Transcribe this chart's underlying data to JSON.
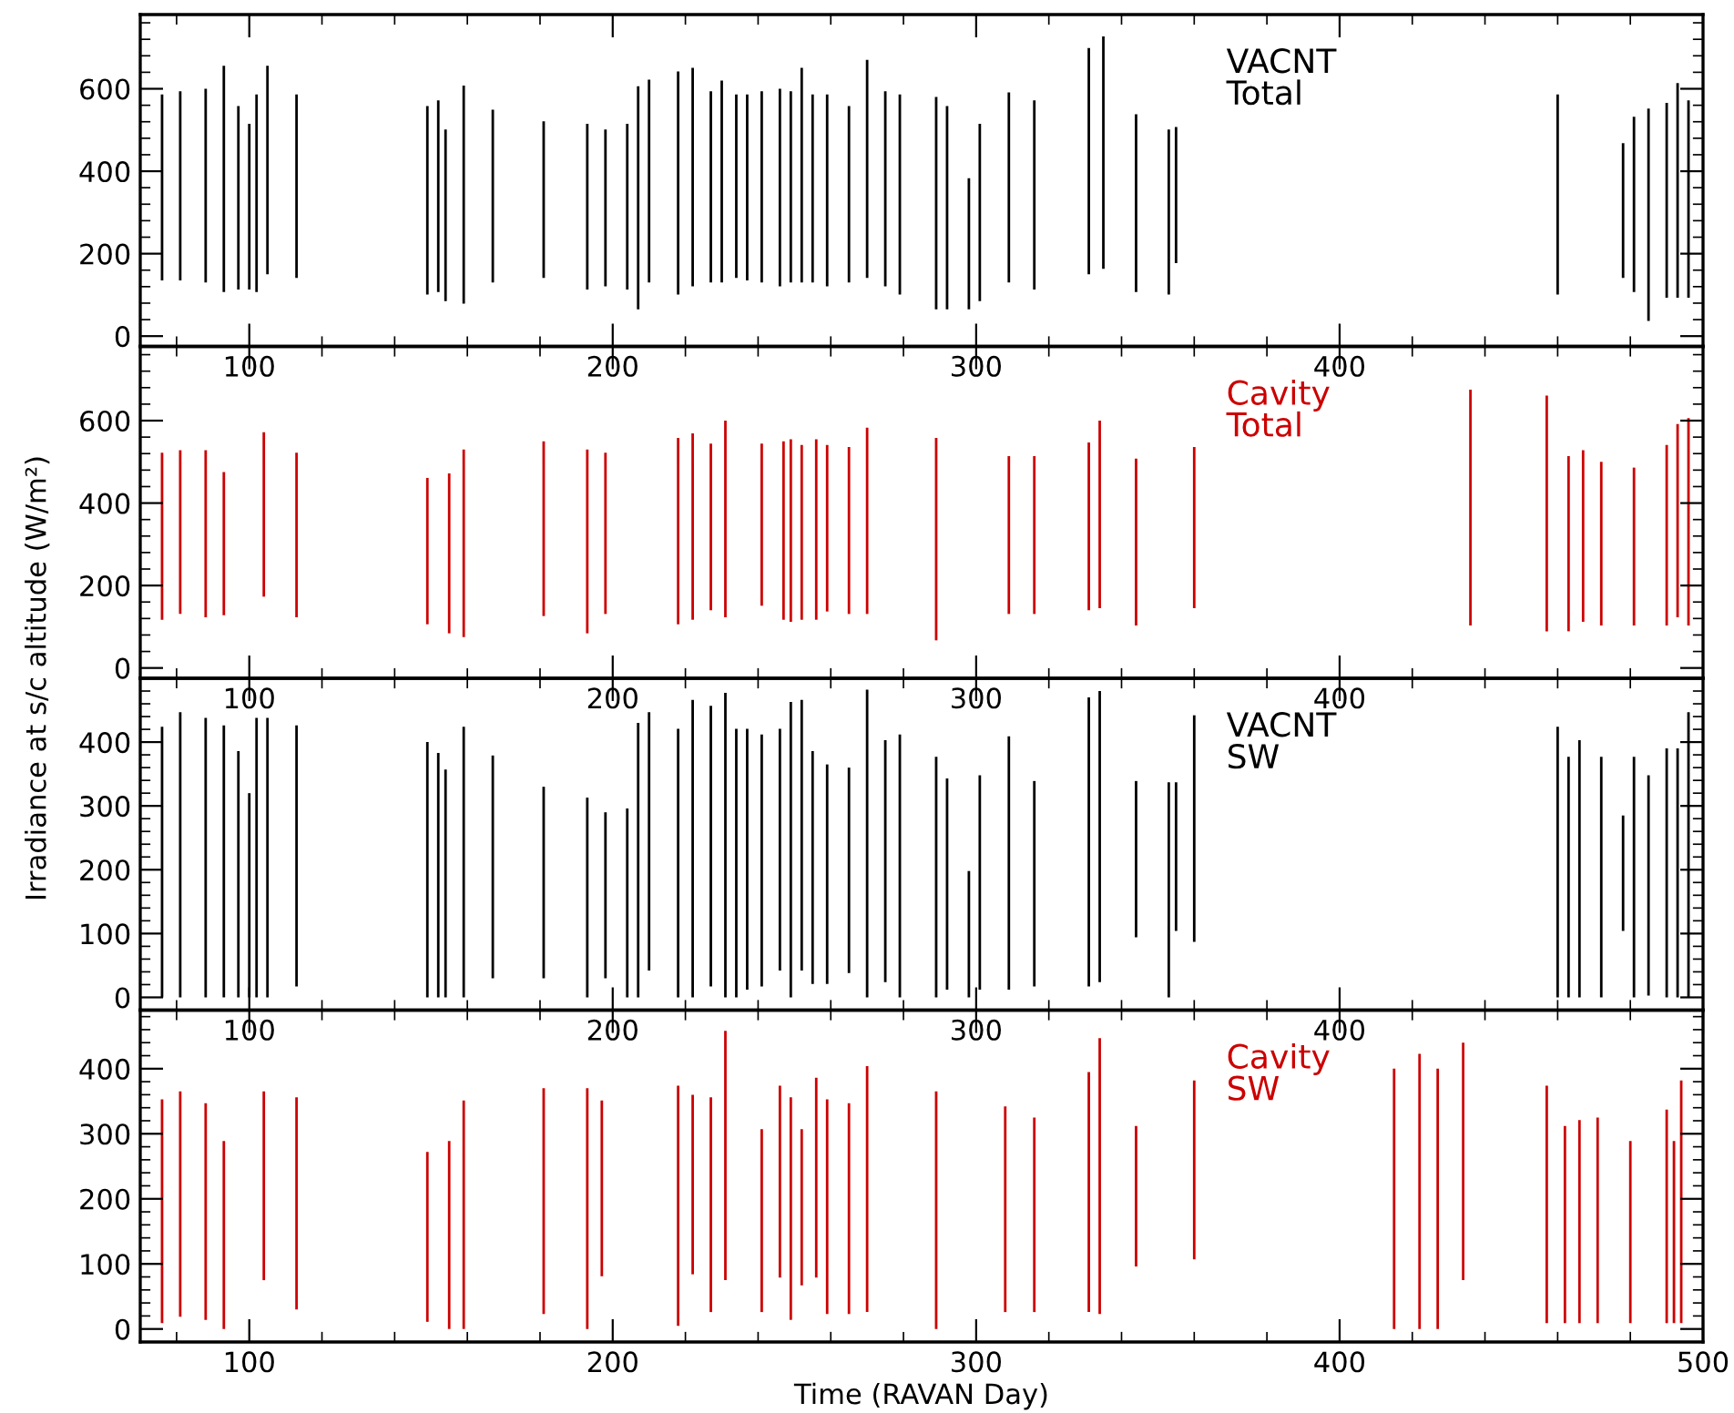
{
  "chart_data": [
    {
      "type": "bar",
      "xlim": [
        70,
        500
      ],
      "xticks": [
        100,
        200,
        300,
        400
      ],
      "ylim": [
        -25,
        780
      ],
      "yticks": [
        0,
        200,
        400,
        600
      ],
      "series": [
        {
          "name": "VACNT\nTotal",
          "color": "#000000",
          "x": [
            76,
            81,
            88,
            93,
            97,
            100,
            102,
            105,
            113,
            149,
            152,
            154,
            159,
            167,
            181,
            193,
            198,
            204,
            207,
            210,
            218,
            222,
            227,
            230,
            234,
            237,
            241,
            246,
            249,
            252,
            255,
            259,
            265,
            270,
            275,
            279,
            289,
            292,
            298,
            301,
            309,
            316,
            331,
            335,
            344,
            353,
            355,
            460,
            478,
            481,
            485,
            490,
            493,
            496
          ],
          "base": [
            135,
            135,
            130,
            107,
            113,
            113,
            107,
            150,
            141,
            101,
            107,
            85,
            79,
            130,
            141,
            113,
            121,
            113,
            65,
            130,
            101,
            121,
            130,
            130,
            141,
            135,
            130,
            121,
            130,
            130,
            130,
            121,
            130,
            141,
            121,
            101,
            65,
            65,
            65,
            85,
            130,
            113,
            150,
            163,
            107,
            101,
            177,
            101,
            141,
            107,
            37,
            93,
            93,
            93
          ],
          "values": [
            451,
            459,
            470,
            549,
            445,
            402,
            479,
            506,
            445,
            457,
            465,
            416,
            529,
            419,
            380,
            402,
            380,
            402,
            541,
            492,
            541,
            530,
            464,
            490,
            445,
            451,
            464,
            479,
            464,
            521,
            456,
            465,
            428,
            529,
            473,
            485,
            515,
            493,
            318,
            430,
            461,
            459,
            549,
            564,
            431,
            400,
            330,
            485,
            327,
            425,
            515,
            473,
            521,
            479
          ]
        }
      ]
    },
    {
      "type": "bar",
      "xlim": [
        70,
        500
      ],
      "xticks": [
        100,
        200,
        300,
        400
      ],
      "ylim": [
        -25,
        780
      ],
      "yticks": [
        0,
        200,
        400,
        600
      ],
      "ylabel": "Irradiance at s/c altitude (W/m²)",
      "series": [
        {
          "name": "Cavity\nTotal",
          "color": "#cc0000",
          "x": [
            76,
            81,
            88,
            93,
            104,
            113,
            149,
            155,
            159,
            181,
            193,
            198,
            218,
            222,
            227,
            231,
            241,
            247,
            249,
            252,
            256,
            259,
            265,
            270,
            289,
            309,
            316,
            331,
            334,
            344,
            360,
            436,
            457,
            463,
            467,
            472,
            481,
            490,
            493,
            496
          ],
          "base": [
            117,
            131,
            123,
            128,
            173,
            123,
            106,
            84,
            75,
            126,
            84,
            131,
            106,
            117,
            140,
            123,
            151,
            117,
            112,
            117,
            117,
            137,
            131,
            131,
            67,
            131,
            131,
            140,
            145,
            103,
            145,
            103,
            89,
            89,
            112,
            103,
            103,
            103,
            123,
            103
          ],
          "values": [
            405,
            397,
            405,
            347,
            399,
            399,
            355,
            388,
            455,
            424,
            446,
            391,
            452,
            452,
            404,
            477,
            393,
            433,
            443,
            424,
            438,
            404,
            405,
            452,
            491,
            383,
            383,
            407,
            455,
            405,
            391,
            572,
            572,
            425,
            416,
            397,
            383,
            438,
            469,
            503
          ]
        }
      ]
    },
    {
      "type": "bar",
      "xlim": [
        70,
        500
      ],
      "xticks": [
        100,
        200,
        300,
        400
      ],
      "ylim": [
        -20,
        500
      ],
      "yticks": [
        0,
        100,
        200,
        300,
        400
      ],
      "series": [
        {
          "name": "VACNT\nSW",
          "color": "#000000",
          "x": [
            76,
            81,
            88,
            93,
            97,
            100,
            102,
            105,
            113,
            149,
            152,
            154,
            159,
            167,
            181,
            193,
            198,
            204,
            207,
            210,
            218,
            222,
            227,
            231,
            234,
            237,
            241,
            246,
            249,
            252,
            255,
            259,
            265,
            270,
            275,
            279,
            289,
            292,
            298,
            301,
            309,
            316,
            331,
            334,
            344,
            353,
            355,
            360,
            460,
            463,
            466,
            472,
            478,
            481,
            485,
            490,
            493,
            496
          ],
          "base": [
            0,
            0,
            0,
            0,
            0,
            0,
            0,
            0,
            17,
            0,
            0,
            0,
            0,
            30,
            30,
            0,
            30,
            0,
            0,
            42,
            0,
            0,
            17,
            0,
            0,
            12,
            17,
            42,
            0,
            42,
            21,
            21,
            38,
            0,
            24,
            0,
            0,
            12,
            0,
            12,
            12,
            17,
            17,
            24,
            94,
            0,
            104,
            87,
            0,
            0,
            0,
            0,
            104,
            0,
            3,
            0,
            0,
            0
          ],
          "values": [
            424,
            447,
            438,
            426,
            386,
            320,
            438,
            438,
            409,
            400,
            383,
            357,
            424,
            349,
            300,
            313,
            260,
            296,
            430,
            405,
            421,
            466,
            440,
            477,
            421,
            409,
            395,
            379,
            463,
            424,
            365,
            344,
            322,
            482,
            379,
            412,
            377,
            331,
            198,
            336,
            397,
            322,
            453,
            456,
            245,
            337,
            233,
            355,
            424,
            377,
            403,
            377,
            181,
            377,
            345,
            390,
            390,
            447
          ]
        }
      ]
    },
    {
      "type": "bar",
      "xlim": [
        70,
        500
      ],
      "xticks": [
        100,
        200,
        300,
        400,
        500
      ],
      "ylim": [
        -20,
        490
      ],
      "yticks": [
        0,
        100,
        200,
        300,
        400
      ],
      "xlabel": "Time (RAVAN Day)",
      "series": [
        {
          "name": "Cavity\nSW",
          "color": "#cc0000",
          "x": [
            76,
            81,
            88,
            93,
            104,
            113,
            149,
            155,
            159,
            181,
            193,
            197,
            218,
            222,
            227,
            231,
            241,
            246,
            249,
            252,
            256,
            259,
            265,
            270,
            289,
            308,
            316,
            331,
            334,
            344,
            360,
            415,
            422,
            427,
            434,
            457,
            462,
            466,
            471,
            480,
            490,
            492,
            494
          ],
          "base": [
            9,
            19,
            14,
            0,
            75,
            30,
            11,
            0,
            0,
            23,
            0,
            81,
            5,
            84,
            26,
            75,
            26,
            79,
            14,
            67,
            79,
            23,
            23,
            26,
            0,
            26,
            26,
            26,
            23,
            96,
            107,
            0,
            0,
            0,
            75,
            9,
            9,
            9,
            9,
            9,
            9,
            9,
            9
          ],
          "values": [
            344,
            346,
            333,
            289,
            290,
            326,
            261,
            289,
            351,
            347,
            370,
            270,
            369,
            276,
            330,
            383,
            281,
            295,
            342,
            240,
            307,
            330,
            324,
            378,
            365,
            316,
            299,
            369,
            424,
            216,
            275,
            400,
            423,
            400,
            365,
            365,
            303,
            312,
            316,
            280,
            328,
            280,
            373
          ]
        }
      ]
    }
  ]
}
